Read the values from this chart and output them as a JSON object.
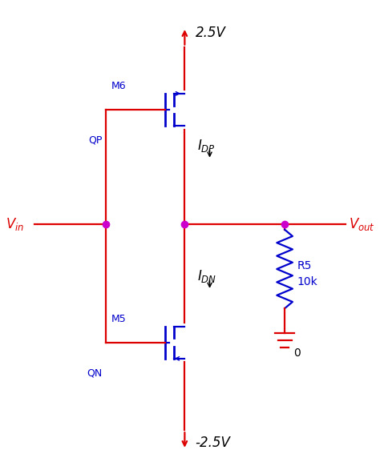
{
  "bg_color": "#ffffff",
  "red": "#dd0000",
  "blue": "#0000cc",
  "magenta": "#cc00cc",
  "black": "#000000",
  "figsize": [
    4.74,
    5.87
  ],
  "dpi": 100,
  "labels": {
    "VDD": "2.5V",
    "VSS": "-2.5V",
    "QP": "QP",
    "QN": "QN",
    "M6": "M6",
    "M5": "M5",
    "R5": "R5",
    "R5val": "10k",
    "GND": "0"
  },
  "xlim": [
    0,
    10
  ],
  "ylim": [
    0,
    13
  ]
}
